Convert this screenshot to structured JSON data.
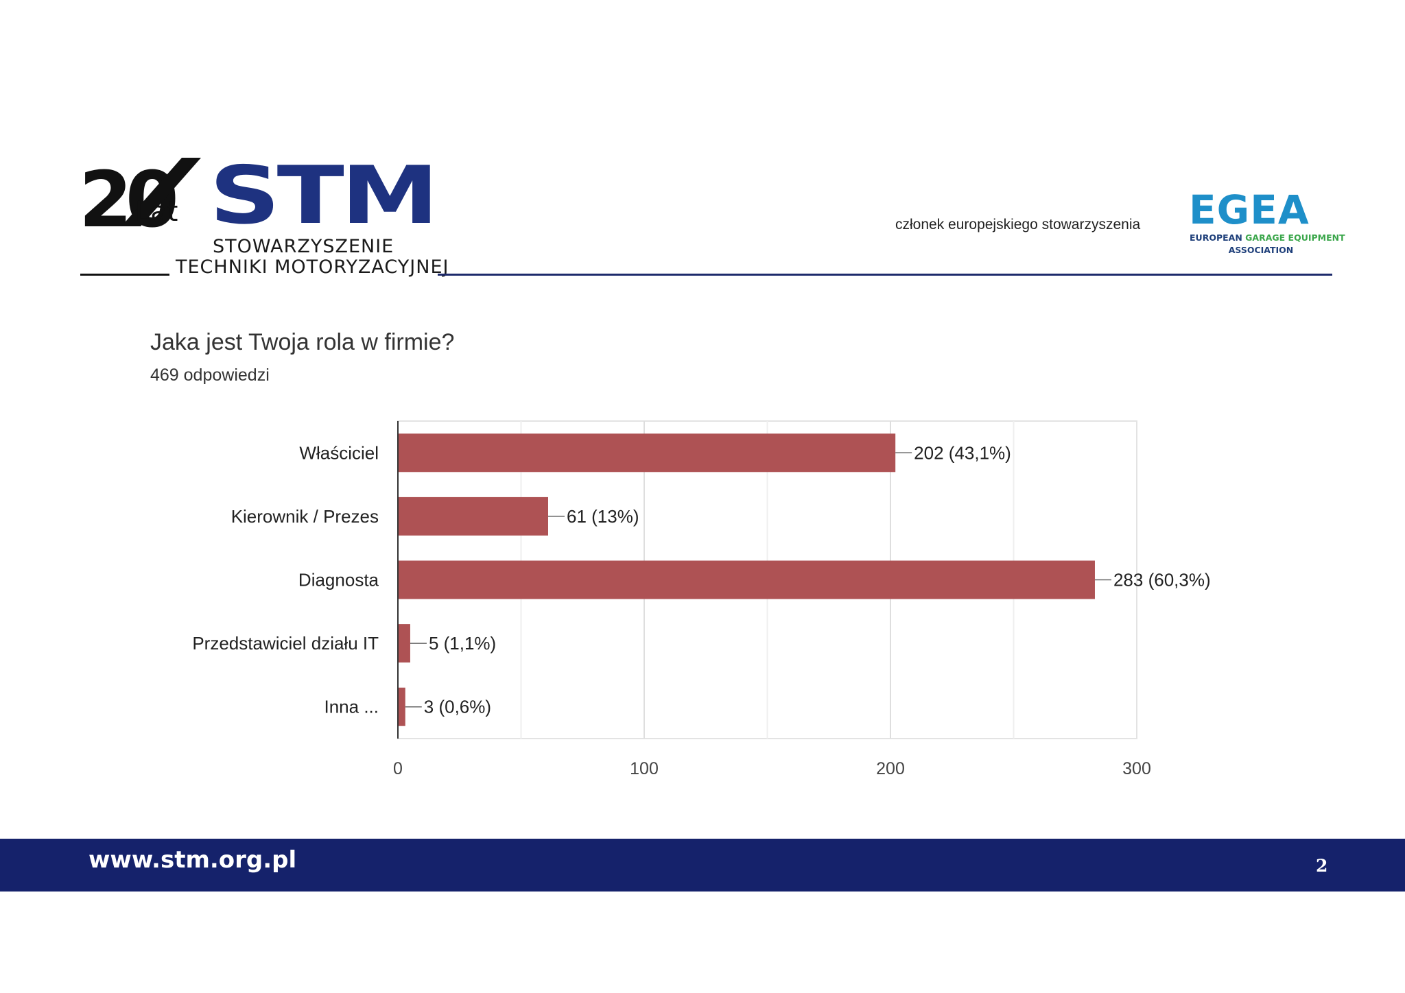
{
  "header": {
    "logo_stm": {
      "anniversary_number": "20",
      "anniversary_word": "Lat",
      "acronym": "STM",
      "name_line1": "STOWARZYSZENIE",
      "name_line2": "TECHNIKI MOTORYZACYJNEJ"
    },
    "member_text": "członek europejskiego stowarzyszenia",
    "logo_egea": {
      "acronym": "EGEA",
      "sub_line1_a": "EUROPEAN ",
      "sub_line1_b": "GARAGE EQUIPMENT",
      "sub_line2": "ASSOCIATION"
    }
  },
  "question": {
    "title": "Jaka jest Twoja rola w firmie?",
    "response_count": "469 odpowiedzi"
  },
  "chart_data": {
    "type": "bar",
    "orientation": "horizontal",
    "categories": [
      "Właściciel",
      "Kierownik / Prezes",
      "Diagnosta",
      "Przedstawiciel działu IT",
      "Inna ..."
    ],
    "values": [
      202,
      61,
      283,
      5,
      3
    ],
    "data_labels": [
      "202 (43,1%)",
      "61 (13%)",
      "283 (60,3%)",
      "5 (1,1%)",
      "3 (0,6%)"
    ],
    "xlim": [
      0,
      300
    ],
    "x_ticks": [
      0,
      100,
      200,
      300
    ],
    "grid": true,
    "bar_color": "#ae5254"
  },
  "footer": {
    "url": "www.stm.org.pl",
    "page_number": "2"
  },
  "colors": {
    "navy": "#15226b",
    "stm_blue": "#1e3280",
    "egea_blue": "#1e8fc9",
    "egea_green": "#3aa64a"
  }
}
